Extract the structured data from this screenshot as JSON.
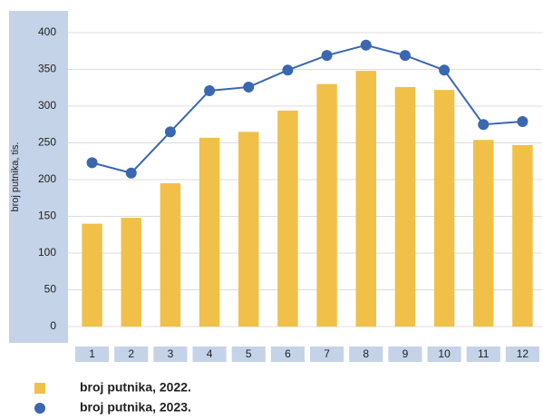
{
  "chart_data": {
    "type": "bar_line",
    "y_label": "broj putnika, tis.",
    "categories": [
      "1",
      "2",
      "3",
      "4",
      "5",
      "6",
      "7",
      "8",
      "9",
      "10",
      "11",
      "12"
    ],
    "series": [
      {
        "name": "broj putnika, 2022.",
        "type": "bar",
        "color": "#f0c048",
        "values": [
          140,
          148,
          195,
          257,
          265,
          294,
          330,
          348,
          326,
          322,
          254,
          247
        ]
      },
      {
        "name": "broj putnika, 2023.",
        "type": "line",
        "color": "#3a67b0",
        "values": [
          223,
          209,
          265,
          321,
          326,
          349,
          369,
          383,
          369,
          349,
          275,
          279
        ]
      }
    ],
    "ylim": [
      0,
      400
    ],
    "yticks": [
      0,
      50,
      100,
      150,
      200,
      250,
      300,
      350,
      400
    ],
    "grid": true
  }
}
